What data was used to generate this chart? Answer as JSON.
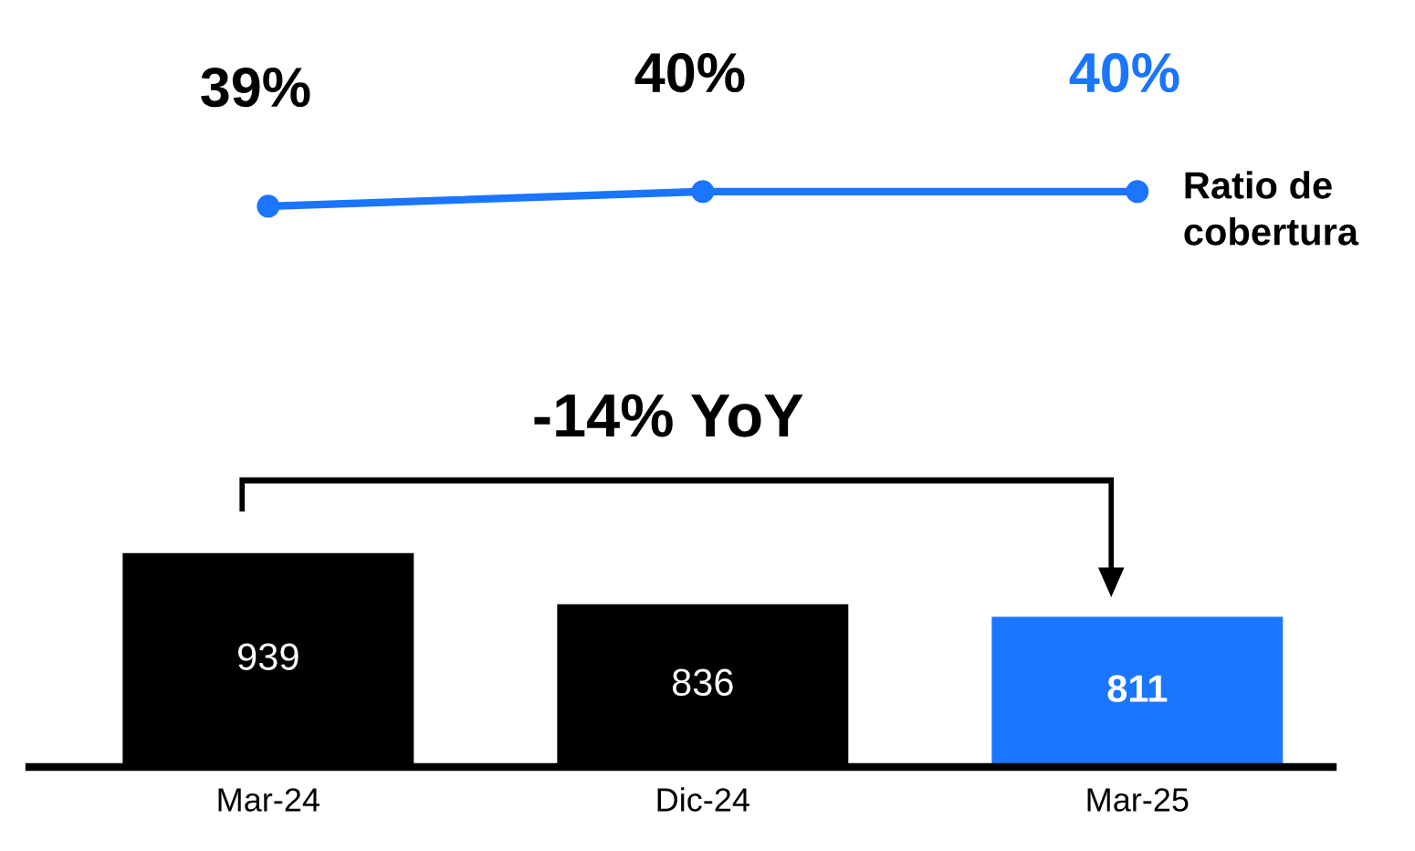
{
  "chart_data": [
    {
      "type": "line",
      "categories": [
        null,
        null,
        null
      ],
      "tick_labels": false,
      "grid": false,
      "marker": "circle",
      "series": [
        {
          "name": "Ratio de cobertura",
          "color": "#1a75ff",
          "values": [
            39,
            40,
            40
          ],
          "value_labels": [
            "39%",
            "40%",
            "40%"
          ]
        }
      ]
    },
    {
      "type": "bar",
      "categories": [
        "Mar-24",
        "Dic-24",
        "Mar-25"
      ],
      "tick_labels": "x",
      "grid": false,
      "series": [
        {
          "values": [
            939,
            836,
            811
          ],
          "colors": [
            "#000000",
            "#000000",
            "#1a75ff"
          ],
          "value_labels": [
            "939",
            "836",
            "811"
          ]
        }
      ],
      "annotations": [
        "-14% YoY"
      ]
    }
  ]
}
